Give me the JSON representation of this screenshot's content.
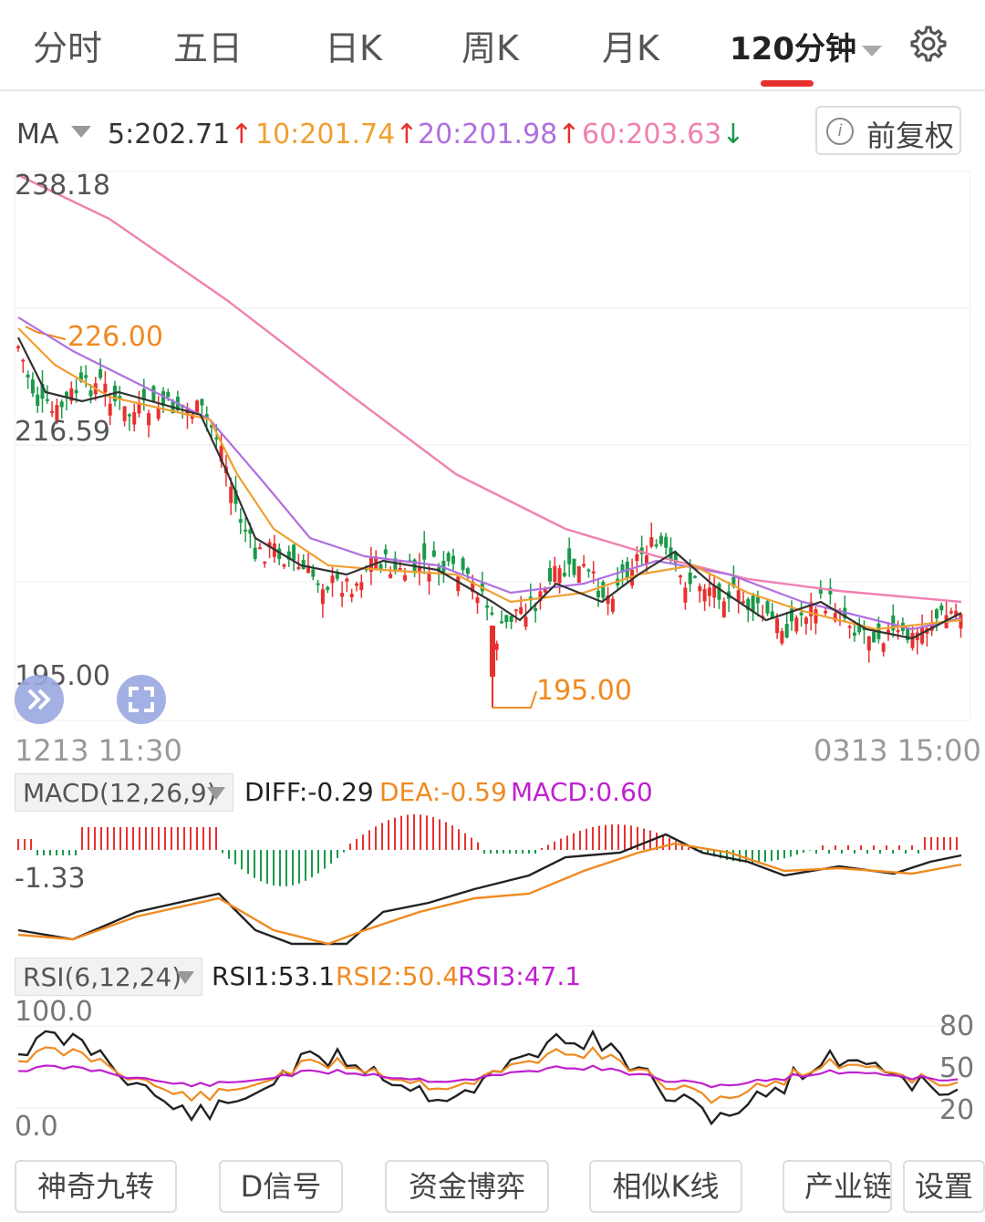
{
  "tabs": [
    {
      "label": "分时",
      "active": false
    },
    {
      "label": "五日",
      "active": false
    },
    {
      "label": "日K",
      "active": false
    },
    {
      "label": "周K",
      "active": false
    },
    {
      "label": "月K",
      "active": false
    },
    {
      "label": "120分钟",
      "active": true
    }
  ],
  "settings_icon": "gear-icon",
  "ma": {
    "label": "MA",
    "ma5": "5:202.71",
    "ma5_dir": "↑",
    "ma10": "10:201.74",
    "ma10_dir": "↑",
    "ma20": "20:201.98",
    "ma20_dir": "↑",
    "ma60": "60:203.63",
    "ma60_dir": "↓",
    "colors": {
      "ma5": "#333333",
      "ma10": "#f0a030",
      "ma20": "#b070e0",
      "ma60": "#f080b0",
      "up": "#e8312f",
      "down": "#1a9a4a"
    }
  },
  "adjust_button": "前复权",
  "price_chart": {
    "y_top": "238.18",
    "y_mid": "216.59",
    "y_bottom": "195.00",
    "high_label": "226.00",
    "low_label": "195.00",
    "x_start": "1213 11:30",
    "x_end": "0313 15:00"
  },
  "macd": {
    "selector": "MACD(12,26,9)",
    "diff": "DIFF:-0.29",
    "dea": "DEA:-0.59",
    "macd": "MACD:0.60",
    "y_label": "-1.33"
  },
  "rsi": {
    "selector": "RSI(6,12,24)",
    "rsi1": "RSI1:53.1",
    "rsi2": "RSI2:50.4",
    "rsi3": "RSI3:47.1",
    "y_top": "100.0",
    "y_bottom": "0.0",
    "right_80": "80",
    "right_50": "50",
    "right_20": "20"
  },
  "bottom_buttons": [
    "神奇九转",
    "D信号",
    "资金博弈",
    "相似K线",
    "产业链",
    "设置"
  ]
}
